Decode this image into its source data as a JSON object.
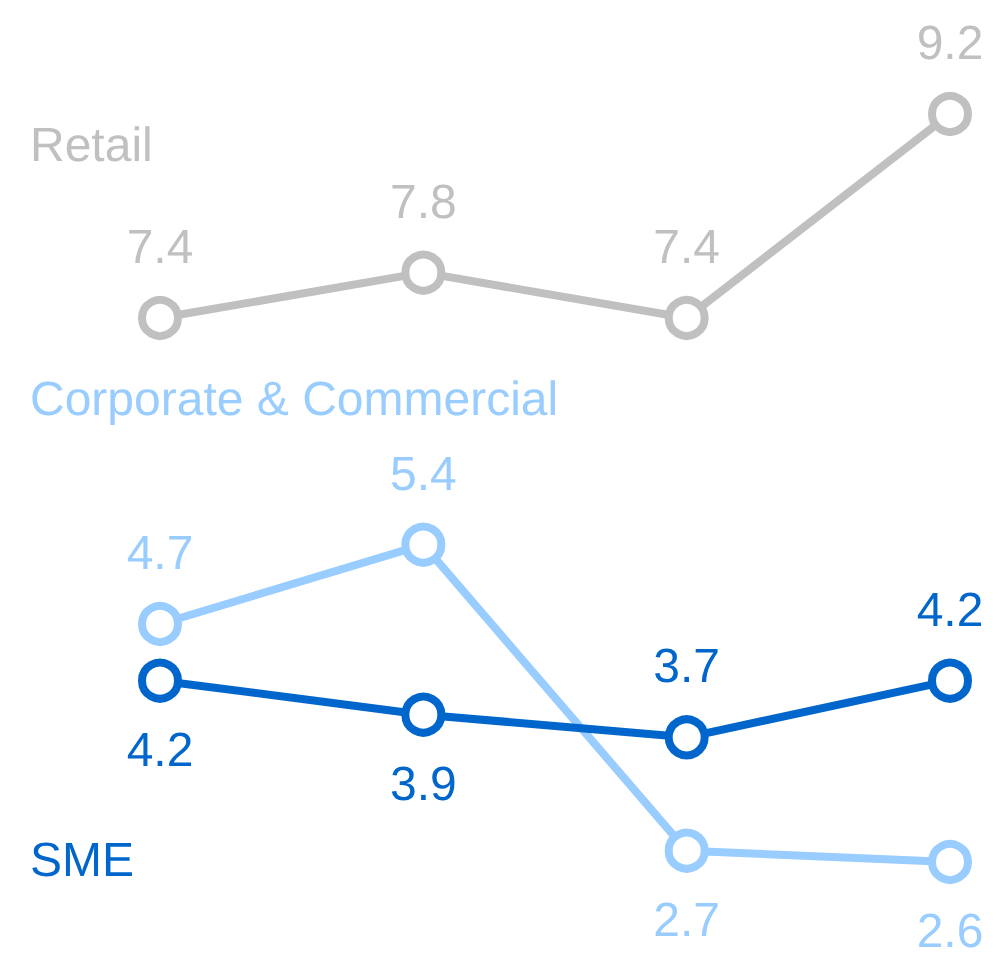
{
  "chart_data": {
    "type": "line",
    "categories": [
      null,
      null,
      null,
      null
    ],
    "series": [
      {
        "name": "Retail",
        "color": "#c0c0c0",
        "values": [
          7.4,
          7.8,
          7.4,
          9.2
        ]
      },
      {
        "name": "Corporate & Commercial",
        "color": "#99ccff",
        "values": [
          4.7,
          5.4,
          2.7,
          2.6
        ]
      },
      {
        "name": "SME",
        "color": "#0066cc",
        "values": [
          4.2,
          3.9,
          3.7,
          4.2
        ]
      }
    ],
    "tick_labels": false,
    "data_labels": true,
    "marker": "circle",
    "line_style": "solid",
    "grid": false,
    "legend": false
  }
}
